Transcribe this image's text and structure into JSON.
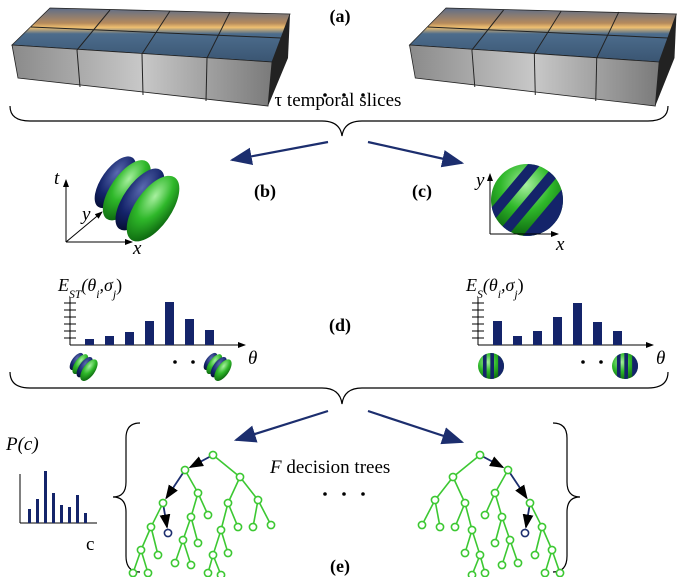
{
  "panel_a": {
    "label": "(a)",
    "caption": "τ temporal slices"
  },
  "panel_b": {
    "label": "(b)",
    "axes": [
      "t",
      "y",
      "x"
    ]
  },
  "panel_c": {
    "label": "(c)",
    "axes": [
      "y",
      "x"
    ]
  },
  "panel_d": {
    "label": "(d)",
    "left": {
      "ylabel": [
        {
          "text": "E",
          "italic": true
        },
        {
          "text": "ST",
          "sub": true,
          "italic": true
        },
        {
          "text": "(θ",
          "italic": true
        },
        {
          "text": "i",
          "sub": true,
          "italic": true
        },
        {
          "text": ",σ",
          "italic": true
        },
        {
          "text": "j",
          "sub": true,
          "italic": true
        },
        {
          "text": ")"
        }
      ],
      "xlabel": "θ",
      "bars": [
        6,
        9,
        13,
        24,
        43,
        26,
        15
      ]
    },
    "right": {
      "ylabel": [
        {
          "text": "E",
          "italic": true
        },
        {
          "text": "S",
          "sub": true,
          "italic": true
        },
        {
          "text": "(θ",
          "italic": true
        },
        {
          "text": "i",
          "sub": true,
          "italic": true
        },
        {
          "text": ",σ",
          "italic": true
        },
        {
          "text": "j",
          "sub": true,
          "italic": true
        },
        {
          "text": ")"
        }
      ],
      "xlabel": "θ",
      "bars": [
        24,
        9,
        14,
        28,
        42,
        23,
        14
      ]
    }
  },
  "panel_e": {
    "label": "(e)",
    "caption": [
      {
        "text": "F",
        "italic": true
      },
      {
        "text": " decision trees"
      }
    ],
    "chart": {
      "ylabel": "P(c)",
      "xlabel": "c",
      "bars": [
        14,
        24,
        52,
        30,
        18,
        16,
        28,
        10
      ]
    }
  }
}
